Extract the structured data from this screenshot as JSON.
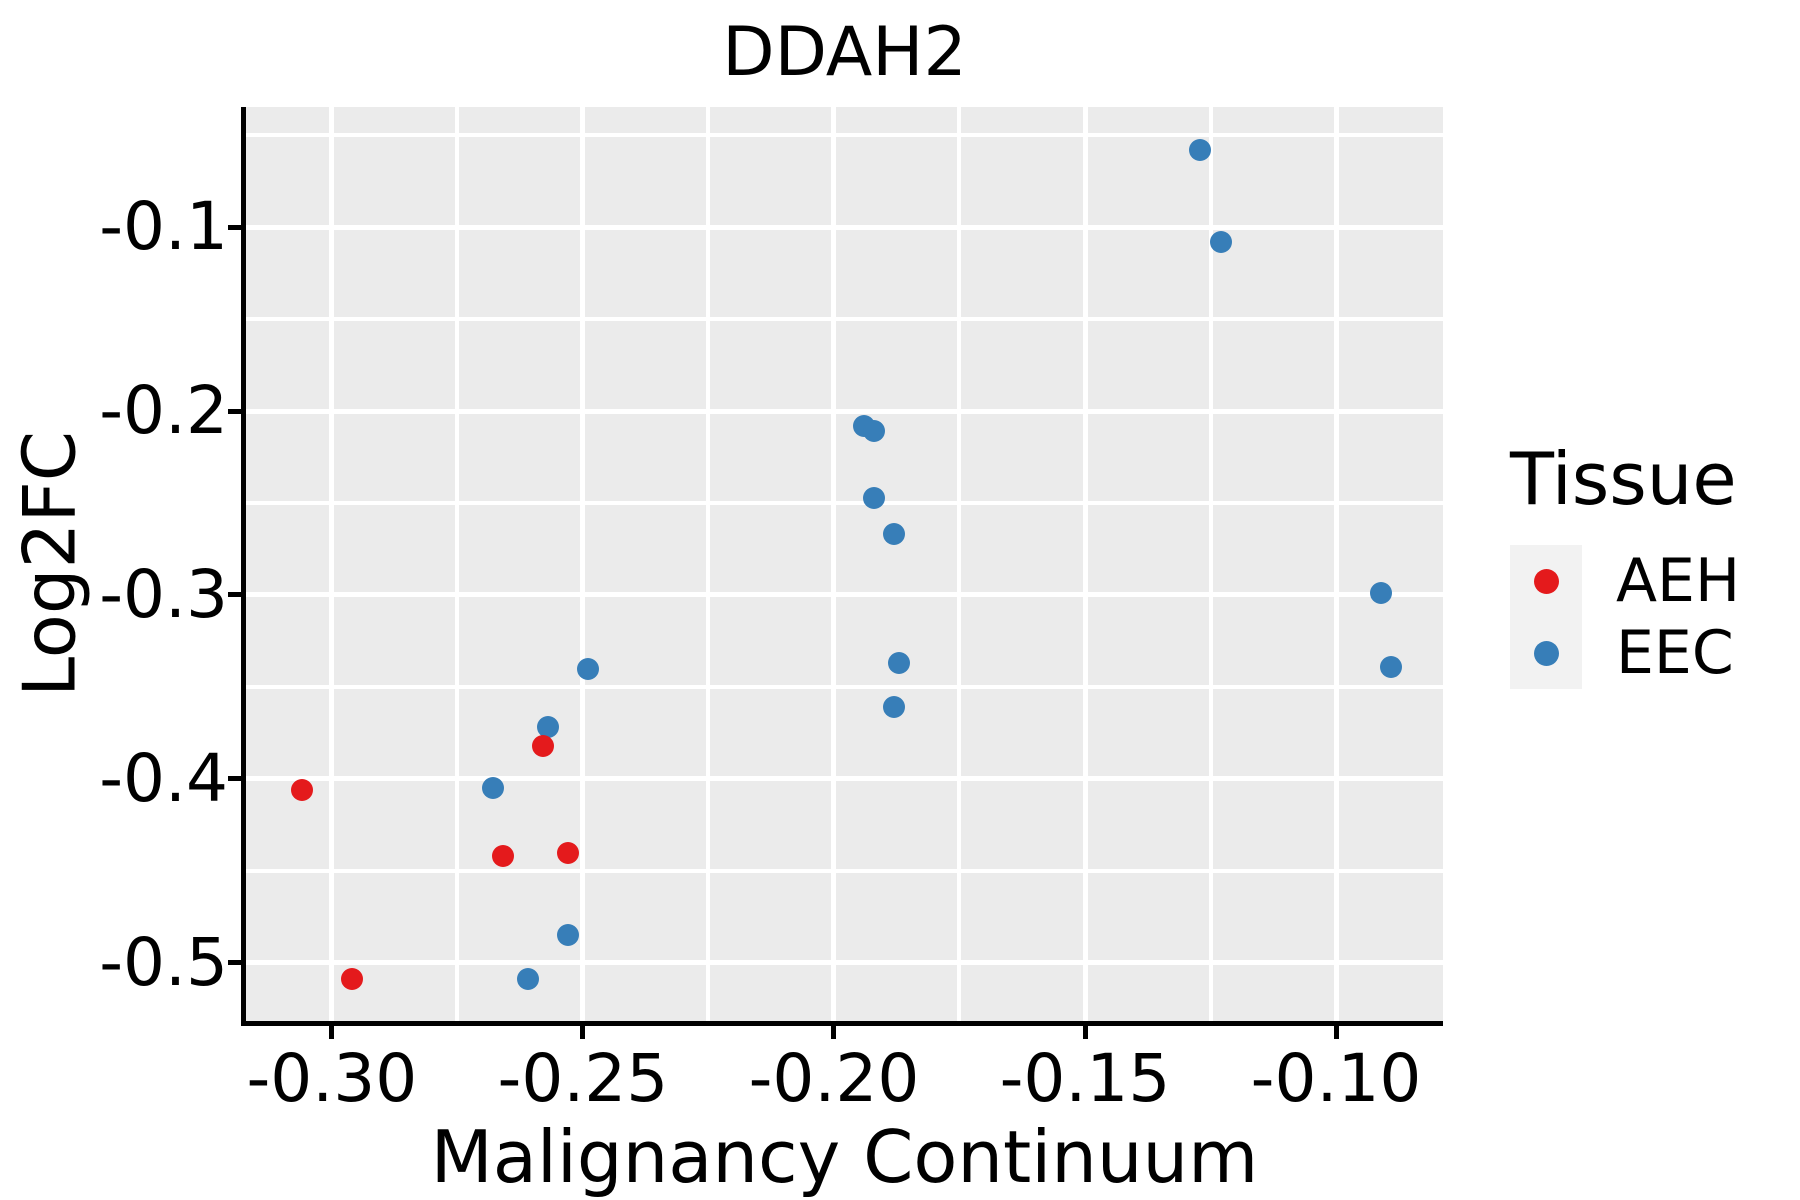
{
  "title": "DDAH2",
  "axes": {
    "x_label": "Malignancy Continuum",
    "y_label": "Log2FC",
    "xlim": [
      -0.3171,
      -0.0787
    ],
    "ylim": [
      -0.5316,
      -0.0347
    ],
    "x_ticks": [
      {
        "value": -0.3,
        "label": "-0.30"
      },
      {
        "value": -0.25,
        "label": "-0.25"
      },
      {
        "value": -0.2,
        "label": "-0.20"
      },
      {
        "value": -0.15,
        "label": "-0.15"
      },
      {
        "value": -0.1,
        "label": "-0.10"
      }
    ],
    "y_ticks": [
      {
        "value": -0.1,
        "label": "-0.1"
      },
      {
        "value": -0.2,
        "label": "-0.2"
      },
      {
        "value": -0.3,
        "label": "-0.3"
      },
      {
        "value": -0.4,
        "label": "-0.4"
      },
      {
        "value": -0.5,
        "label": "-0.5"
      }
    ],
    "x_minor_gridlines": [
      -0.275,
      -0.225,
      -0.175,
      -0.125
    ],
    "y_minor_gridlines": [
      -0.05,
      -0.15,
      -0.25,
      -0.35,
      -0.45
    ],
    "grid_on": true
  },
  "legend": {
    "title": "Tissue",
    "position": "right",
    "entries": [
      {
        "label": "AEH",
        "color": "#e41a1c"
      },
      {
        "label": "EEC",
        "color": "#377eb8"
      }
    ]
  },
  "colors": {
    "panel_background": "#EBEBEB",
    "gridline": "#FFFFFF",
    "axis": "#000000",
    "legend_key_background": "#F2F2F2",
    "aeh_red": "#e41a1c",
    "eec_blue": "#377eb8"
  },
  "chart_data": {
    "type": "scatter",
    "title": "DDAH2",
    "xlabel": "Malignancy Continuum",
    "ylabel": "Log2FC",
    "xlim": [
      -0.3171,
      -0.0787
    ],
    "ylim": [
      -0.5316,
      -0.0347
    ],
    "series": [
      {
        "name": "AEH",
        "color": "#e41a1c",
        "points": [
          [
            -0.306,
            -0.406
          ],
          [
            -0.296,
            -0.509
          ],
          [
            -0.266,
            -0.442
          ],
          [
            -0.258,
            -0.382
          ],
          [
            -0.253,
            -0.44
          ]
        ]
      },
      {
        "name": "EEC",
        "color": "#377eb8",
        "points": [
          [
            -0.268,
            -0.405
          ],
          [
            -0.261,
            -0.509
          ],
          [
            -0.257,
            -0.372
          ],
          [
            -0.253,
            -0.485
          ],
          [
            -0.249,
            -0.34
          ],
          [
            -0.194,
            -0.208
          ],
          [
            -0.192,
            -0.211
          ],
          [
            -0.192,
            -0.247
          ],
          [
            -0.188,
            -0.267
          ],
          [
            -0.187,
            -0.337
          ],
          [
            -0.188,
            -0.361
          ],
          [
            -0.127,
            -0.058
          ],
          [
            -0.123,
            -0.108
          ],
          [
            -0.091,
            -0.299
          ],
          [
            -0.089,
            -0.339
          ]
        ]
      }
    ]
  }
}
